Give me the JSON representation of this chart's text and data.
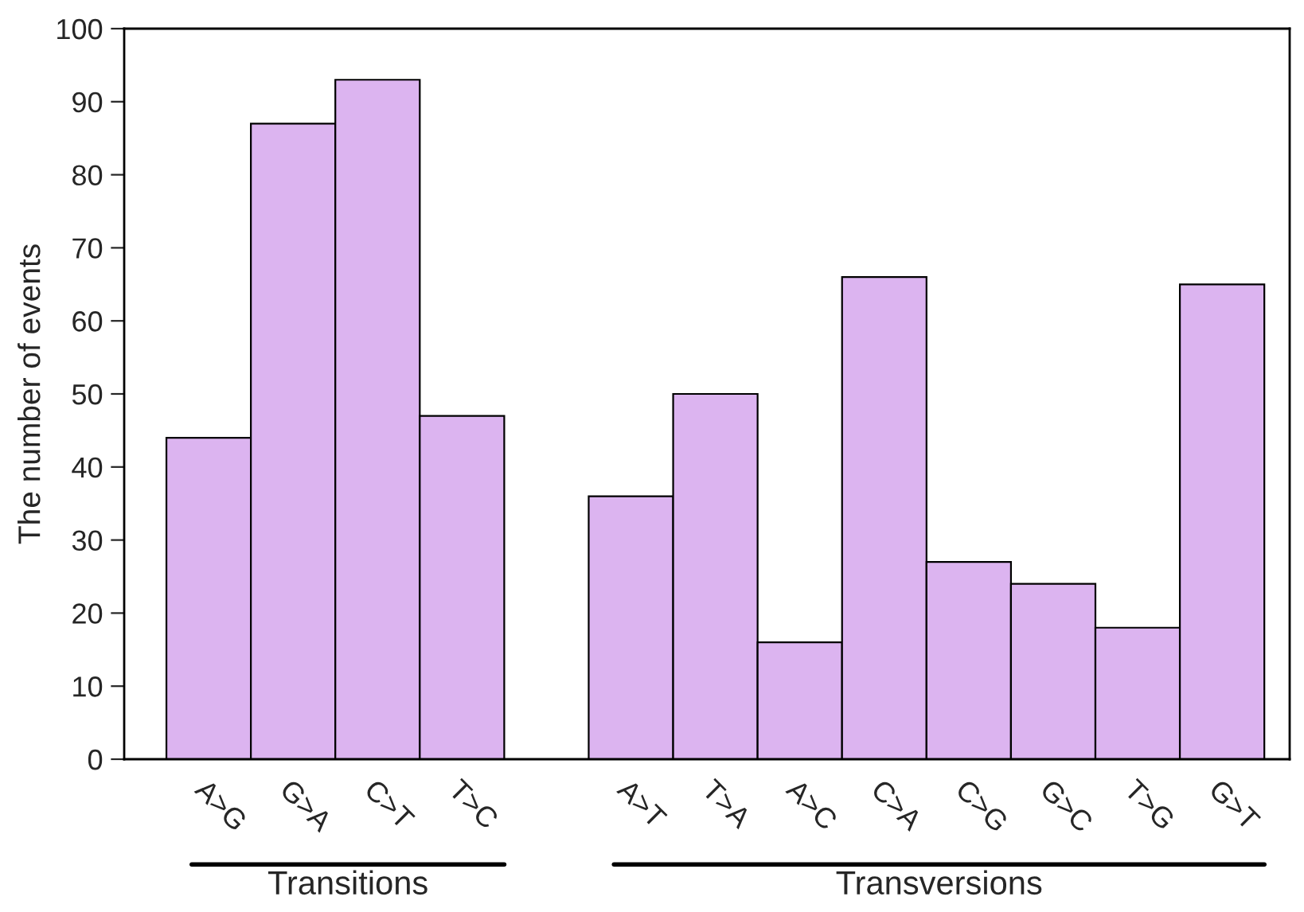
{
  "chart_data": {
    "type": "bar",
    "ylabel": "The number of events",
    "categories": [
      "A>G",
      "G>A",
      "C>T",
      "T>C",
      null,
      "A>T",
      "T>A",
      "A>C",
      "C>A",
      "C>G",
      "G>C",
      "T>G",
      "G>T"
    ],
    "values": [
      44,
      87,
      93,
      47,
      null,
      36,
      50,
      16,
      66,
      27,
      24,
      18,
      65
    ],
    "color": "#dcb4f0",
    "ylim": [
      0,
      100
    ],
    "yticks": [
      0,
      10,
      20,
      30,
      40,
      50,
      60,
      70,
      80,
      90,
      100
    ],
    "grid": false,
    "annotations": [
      "Transitions",
      "Transversions"
    ]
  }
}
